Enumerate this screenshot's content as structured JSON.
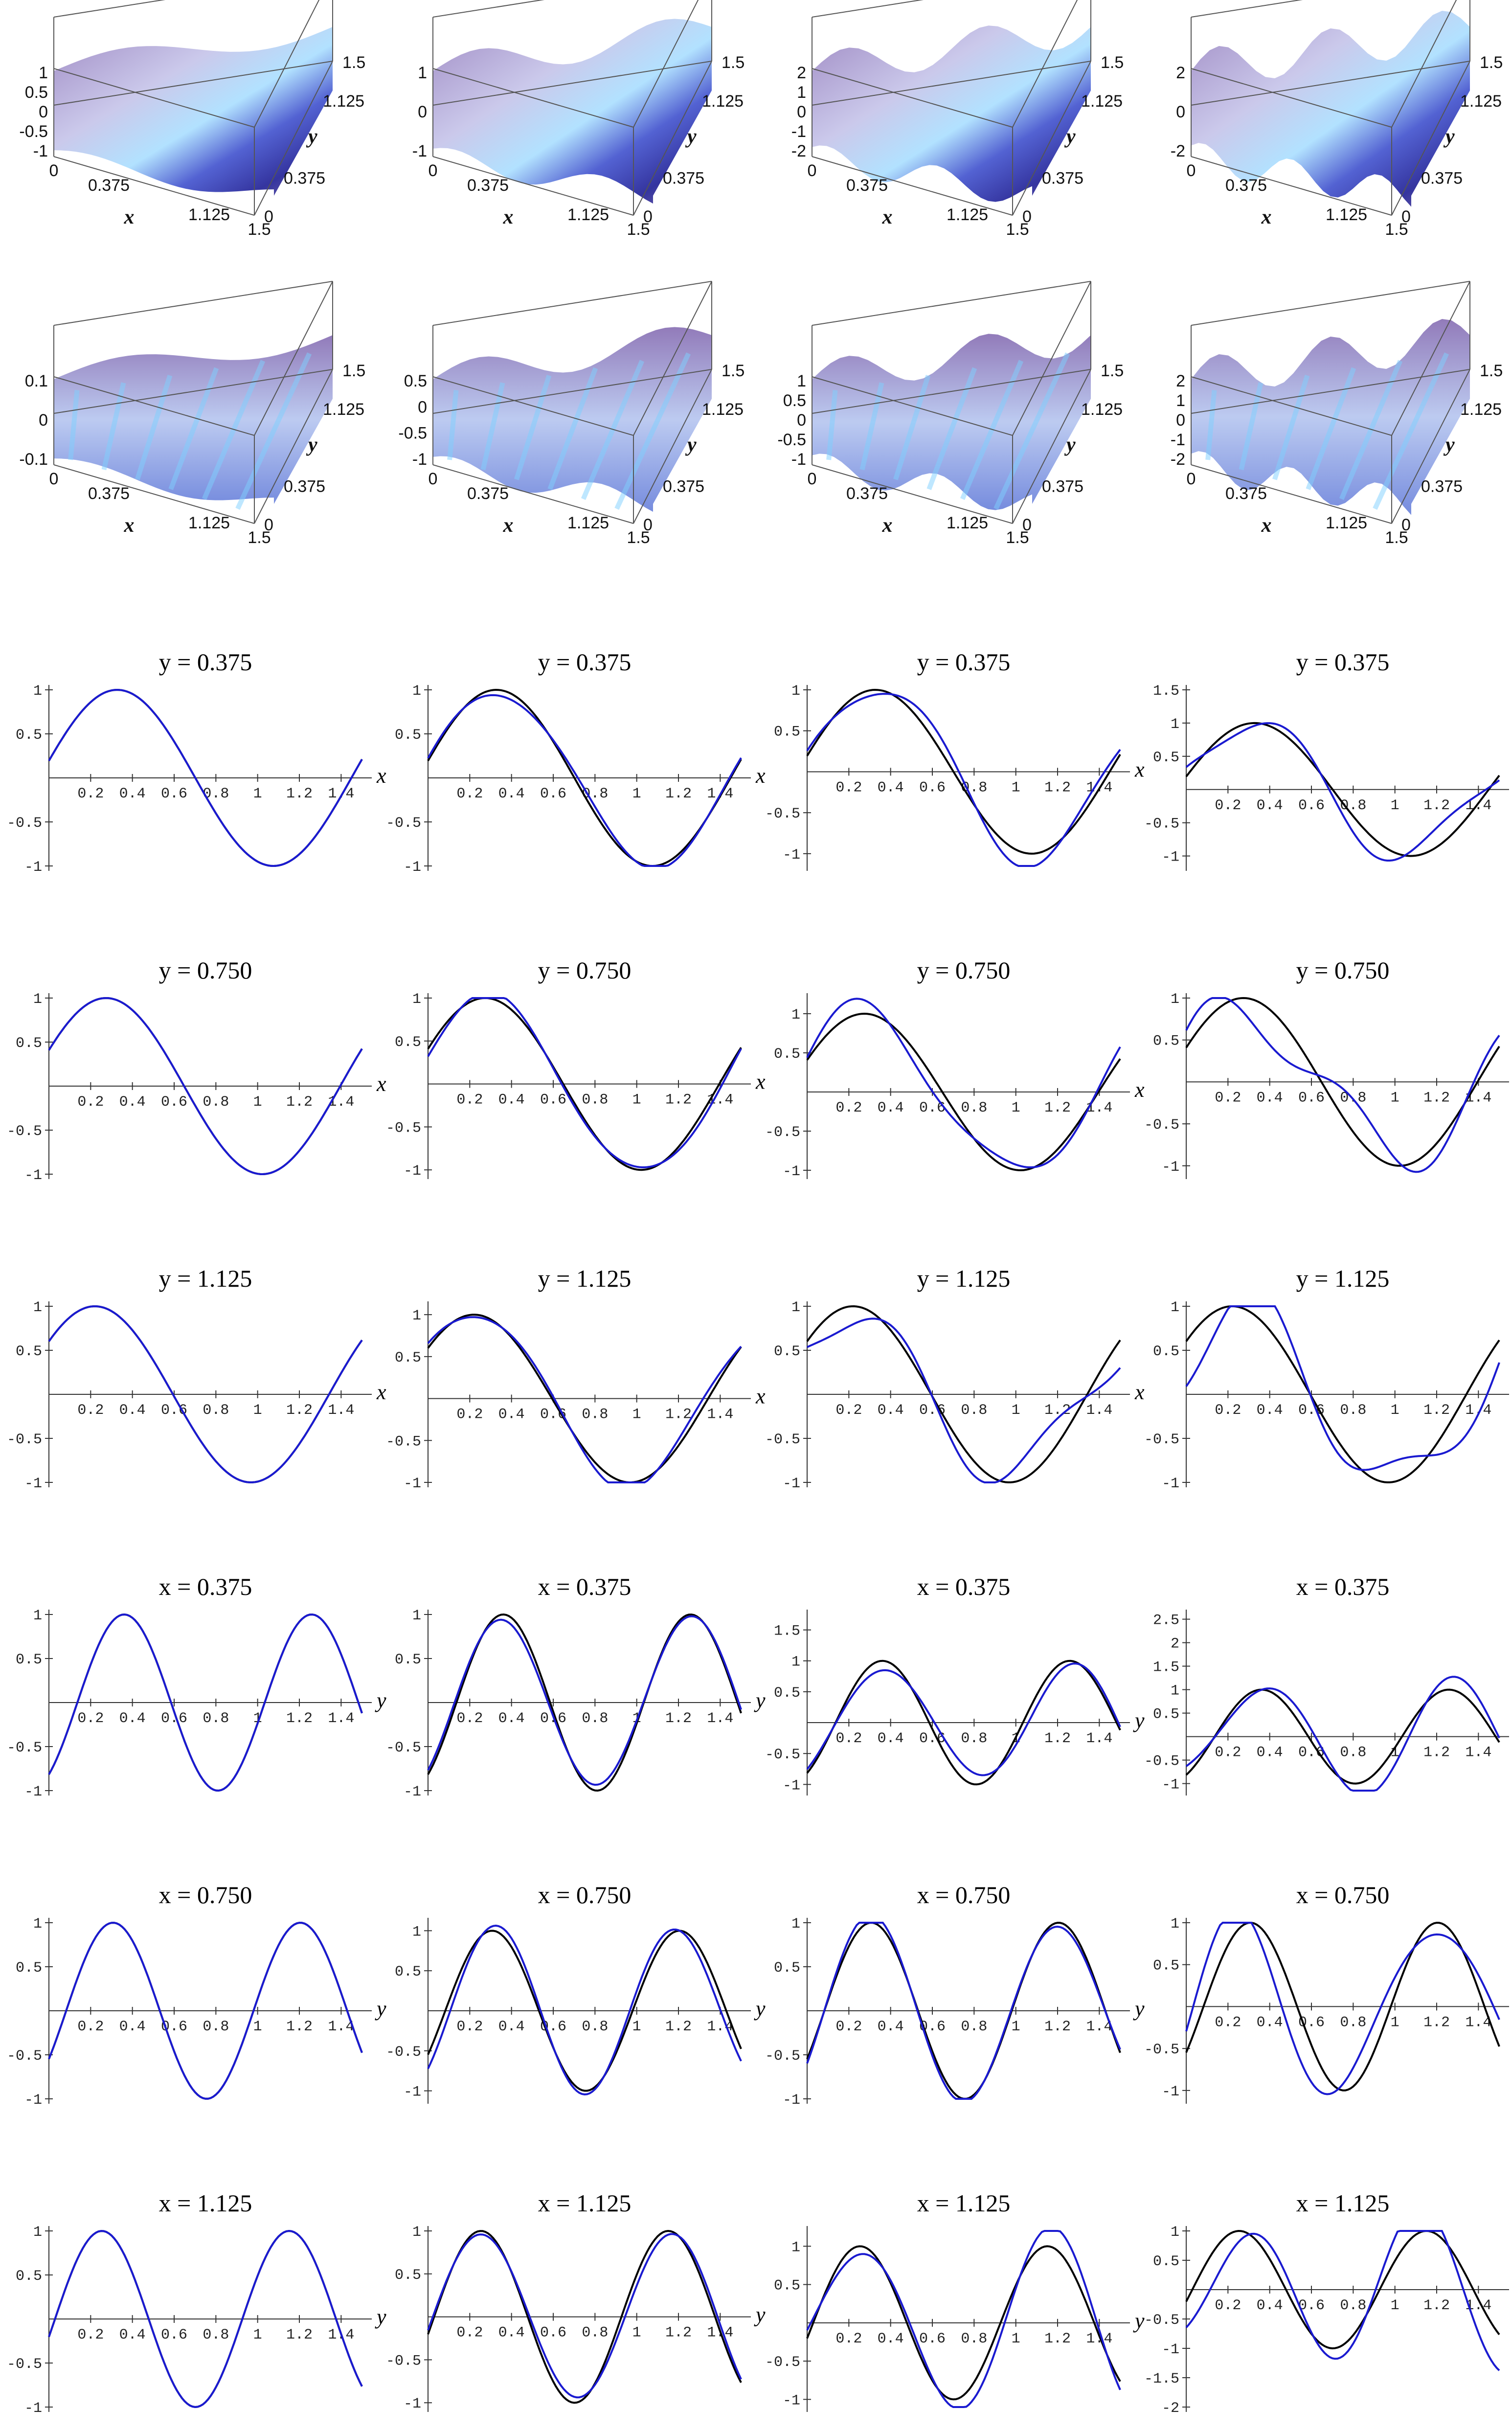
{
  "chart_data": {
    "type": "line",
    "title": "",
    "colors": {
      "exact": "#000000",
      "approx": "#1a1ad0",
      "surface_high": "#8a6fb0",
      "surface_low": "#2a2a9a",
      "surface_mid": "#aee0ff",
      "surface_peak": "#f4f0b0"
    },
    "surface_panels": [
      {
        "zticks": [
          "1",
          "0.5",
          "0",
          "-0.5",
          "-1"
        ],
        "xticks": [
          "0",
          "0.375",
          "1.125",
          "1.5"
        ],
        "yticks": [
          "0",
          "0.375",
          "1.125",
          "1.5"
        ],
        "xlabel": "x",
        "ylabel": "y"
      },
      {
        "zticks": [
          "1",
          "0",
          "-1"
        ],
        "xticks": [
          "0",
          "0.375",
          "1.125",
          "1.5"
        ],
        "yticks": [
          "0",
          "0.375",
          "1.125",
          "1.5"
        ],
        "xlabel": "x",
        "ylabel": "y"
      },
      {
        "zticks": [
          "2",
          "1",
          "0",
          "-1",
          "-2"
        ],
        "xticks": [
          "0",
          "0.375",
          "1.125",
          "1.5"
        ],
        "yticks": [
          "0",
          "0.375",
          "1.125",
          "1.5"
        ],
        "xlabel": "x",
        "ylabel": "y"
      },
      {
        "zticks": [
          "2",
          "0",
          "-2"
        ],
        "xticks": [
          "0",
          "0.375",
          "1.125",
          "1.5"
        ],
        "yticks": [
          "0",
          "0.375",
          "1.125",
          "1.5"
        ],
        "xlabel": "x",
        "ylabel": "y"
      },
      {
        "zticks": [
          "0.1",
          "0",
          "-0.1"
        ],
        "xticks": [
          "0",
          "0.375",
          "1.125",
          "1.5"
        ],
        "yticks": [
          "0",
          "0.375",
          "1.125",
          "1.5"
        ],
        "xlabel": "x",
        "ylabel": "y"
      },
      {
        "zticks": [
          "0.5",
          "0",
          "-0.5",
          "-1"
        ],
        "xticks": [
          "0",
          "0.375",
          "1.125",
          "1.5"
        ],
        "yticks": [
          "0",
          "0.375",
          "1.125",
          "1.5"
        ],
        "xlabel": "x",
        "ylabel": "y"
      },
      {
        "zticks": [
          "1",
          "0.5",
          "0",
          "-0.5",
          "-1"
        ],
        "xticks": [
          "0",
          "0.375",
          "1.125",
          "1.5"
        ],
        "yticks": [
          "0",
          "0.375",
          "1.125",
          "1.5"
        ],
        "xlabel": "x",
        "ylabel": "y"
      },
      {
        "zticks": [
          "2",
          "1",
          "0",
          "-1",
          "-2"
        ],
        "xticks": [
          "0",
          "0.375",
          "1.125",
          "1.5"
        ],
        "yticks": [
          "0",
          "0.375",
          "1.125",
          "1.5"
        ],
        "xlabel": "x",
        "ylabel": "y"
      }
    ],
    "line_panels": [
      {
        "title": "y = 0.375",
        "xlabel": "x",
        "slice": "y",
        "c": 0.375,
        "ylim": [
          -1,
          1
        ],
        "ytick_labels": [
          "1",
          "0.5",
          "-0.5",
          "-1"
        ],
        "xtick_labels": [
          "0.2",
          "0.4",
          "0.6",
          "0.8",
          "1",
          "1.2",
          "1.4"
        ],
        "exact_only": false,
        "approx_err": 0.0
      },
      {
        "title": "y = 0.375",
        "xlabel": "x",
        "slice": "y",
        "c": 0.375,
        "ylim": [
          -1,
          1
        ],
        "ytick_labels": [
          "1",
          "0.5",
          "-0.5",
          "-1"
        ],
        "xtick_labels": [
          "0.2",
          "0.4",
          "0.6",
          "0.8",
          "1",
          "1.2",
          "1.4"
        ],
        "approx_err": 0.05
      },
      {
        "title": "y = 0.375",
        "xlabel": "x",
        "slice": "y",
        "c": 0.375,
        "ylim": [
          -1.15,
          1
        ],
        "ytick_labels": [
          "1",
          "0.5",
          "-0.5",
          "-1"
        ],
        "xtick_labels": [
          "0.2",
          "0.4",
          "0.6",
          "0.8",
          "1",
          "1.2",
          "1.4"
        ],
        "approx_err": 0.12
      },
      {
        "title": "y = 0.375",
        "xlabel": "x",
        "slice": "y",
        "c": 0.375,
        "ylim": [
          -1.15,
          1.5
        ],
        "ytick_labels": [
          "1.5",
          "1",
          "0.5",
          "-0.5",
          "-1"
        ],
        "xtick_labels": [
          "0.2",
          "0.4",
          "0.6",
          "0.8",
          "1",
          "1.2",
          "1.4"
        ],
        "approx_err": 0.2
      },
      {
        "title": "y = 0.750",
        "xlabel": "x",
        "slice": "y",
        "c": 0.75,
        "ylim": [
          -1,
          1
        ],
        "ytick_labels": [
          "1",
          "0.5",
          "-0.5",
          "-1"
        ],
        "xtick_labels": [
          "0.2",
          "0.4",
          "0.6",
          "0.8",
          "1",
          "1.2",
          "1.4"
        ],
        "approx_err": 0.0
      },
      {
        "title": "y = 0.750",
        "xlabel": "x",
        "slice": "y",
        "c": 0.75,
        "ylim": [
          -1.05,
          1
        ],
        "ytick_labels": [
          "1",
          "0.5",
          "-0.5",
          "-1"
        ],
        "xtick_labels": [
          "0.2",
          "0.4",
          "0.6",
          "0.8",
          "1",
          "1.2",
          "1.4"
        ],
        "approx_err": 0.06
      },
      {
        "title": "y = 0.750",
        "xlabel": "x",
        "slice": "y",
        "c": 0.75,
        "ylim": [
          -1.05,
          1.2
        ],
        "ytick_labels": [
          "1",
          "0.5",
          "-0.5",
          "-1"
        ],
        "xtick_labels": [
          "0.2",
          "0.4",
          "0.6",
          "0.8",
          "1",
          "1.2",
          "1.4"
        ],
        "approx_err": 0.14
      },
      {
        "title": "y = 0.750",
        "xlabel": "x",
        "slice": "y",
        "c": 0.75,
        "ylim": [
          -1.1,
          1
        ],
        "ytick_labels": [
          "1",
          "0.5",
          "-0.5",
          "-1"
        ],
        "xtick_labels": [
          "0.2",
          "0.4",
          "0.6",
          "0.8",
          "1",
          "1.2",
          "1.4"
        ],
        "approx_err": 0.28
      },
      {
        "title": "y = 1.125",
        "xlabel": "x",
        "slice": "y",
        "c": 1.125,
        "ylim": [
          -1,
          1
        ],
        "ytick_labels": [
          "1",
          "0.5",
          "-0.5",
          "-1"
        ],
        "xtick_labels": [
          "0.2",
          "0.4",
          "0.6",
          "0.8",
          "1",
          "1.2",
          "1.4"
        ],
        "approx_err": 0.0
      },
      {
        "title": "y = 1.125",
        "xlabel": "x",
        "slice": "y",
        "c": 1.125,
        "ylim": [
          -1,
          1.1
        ],
        "ytick_labels": [
          "1",
          "0.5",
          "-0.5",
          "-1"
        ],
        "xtick_labels": [
          "0.2",
          "0.4",
          "0.6",
          "0.8",
          "1",
          "1.2",
          "1.4"
        ],
        "approx_err": 0.07
      },
      {
        "title": "y = 1.125",
        "xlabel": "x",
        "slice": "y",
        "c": 1.125,
        "ylim": [
          -1,
          1
        ],
        "ytick_labels": [
          "1",
          "0.5",
          "-0.5",
          "-1"
        ],
        "xtick_labels": [
          "0.2",
          "0.4",
          "0.6",
          "0.8",
          "1",
          "1.2",
          "1.4"
        ],
        "approx_err": 0.22
      },
      {
        "title": "y = 1.125",
        "xlabel": "x",
        "slice": "y",
        "c": 1.125,
        "ylim": [
          -1,
          1
        ],
        "ytick_labels": [
          "1",
          "0.5",
          "-0.5",
          "-1"
        ],
        "xtick_labels": [
          "0.2",
          "0.4",
          "0.6",
          "0.8",
          "1",
          "1.2",
          "1.4"
        ],
        "approx_err": 0.32
      },
      {
        "title": "x = 0.375",
        "xlabel": "y",
        "slice": "x",
        "c": 0.375,
        "ylim": [
          -1,
          1
        ],
        "ytick_labels": [
          "1",
          "0.5",
          "-0.5",
          "-1"
        ],
        "xtick_labels": [
          "0.2",
          "0.4",
          "0.6",
          "0.8",
          "1",
          "1.2",
          "1.4"
        ],
        "approx_err": 0.0
      },
      {
        "title": "x = 0.375",
        "xlabel": "y",
        "slice": "x",
        "c": 0.375,
        "ylim": [
          -1,
          1
        ],
        "ytick_labels": [
          "1",
          "0.5",
          "-0.5",
          "-1"
        ],
        "xtick_labels": [
          "0.2",
          "0.4",
          "0.6",
          "0.8",
          "1",
          "1.2",
          "1.4"
        ],
        "approx_err": 0.06
      },
      {
        "title": "x = 0.375",
        "xlabel": "y",
        "slice": "x",
        "c": 0.375,
        "ylim": [
          -1.1,
          1.75
        ],
        "ytick_labels": [
          "1.5",
          "1",
          "0.5",
          "-0.5",
          "-1"
        ],
        "xtick_labels": [
          "0.2",
          "0.4",
          "0.6",
          "0.8",
          "1",
          "1.2",
          "1.4"
        ],
        "approx_err": 0.15
      },
      {
        "title": "x = 0.375",
        "xlabel": "y",
        "slice": "x",
        "c": 0.375,
        "ylim": [
          -1.15,
          2.6
        ],
        "ytick_labels": [
          "2.5",
          "2",
          "1.5",
          "1",
          "0.5",
          "-0.5",
          "-1"
        ],
        "xtick_labels": [
          "0.2",
          "0.4",
          "0.6",
          "0.8",
          "1",
          "1.2",
          "1.4"
        ],
        "approx_err": 0.25
      },
      {
        "title": "x = 0.750",
        "xlabel": "y",
        "slice": "x",
        "c": 0.75,
        "ylim": [
          -1,
          1
        ],
        "ytick_labels": [
          "1",
          "0.5",
          "-0.5",
          "-1"
        ],
        "xtick_labels": [
          "0.2",
          "0.4",
          "0.6",
          "0.8",
          "1",
          "1.2",
          "1.4"
        ],
        "approx_err": 0.0
      },
      {
        "title": "x = 0.750",
        "xlabel": "y",
        "slice": "x",
        "c": 0.75,
        "ylim": [
          -1.1,
          1.1
        ],
        "ytick_labels": [
          "1",
          "0.5",
          "-0.5",
          "-1"
        ],
        "xtick_labels": [
          "0.2",
          "0.4",
          "0.6",
          "0.8",
          "1",
          "1.2",
          "1.4"
        ],
        "approx_err": 0.12
      },
      {
        "title": "x = 0.750",
        "xlabel": "y",
        "slice": "x",
        "c": 0.75,
        "ylim": [
          -1,
          1
        ],
        "ytick_labels": [
          "1",
          "0.5",
          "-0.5",
          "-1"
        ],
        "xtick_labels": [
          "0.2",
          "0.4",
          "0.6",
          "0.8",
          "1",
          "1.2",
          "1.4"
        ],
        "approx_err": 0.06
      },
      {
        "title": "x = 0.750",
        "xlabel": "y",
        "slice": "x",
        "c": 0.75,
        "ylim": [
          -1.1,
          1
        ],
        "ytick_labels": [
          "1",
          "0.5",
          "-0.5",
          "-1"
        ],
        "xtick_labels": [
          "0.2",
          "0.4",
          "0.6",
          "0.8",
          "1",
          "1.2",
          "1.4"
        ],
        "approx_err": 0.35
      },
      {
        "title": "x = 1.125",
        "xlabel": "y",
        "slice": "x",
        "c": 1.125,
        "ylim": [
          -1,
          1
        ],
        "ytick_labels": [
          "1",
          "0.5",
          "-0.5",
          "-1"
        ],
        "xtick_labels": [
          "0.2",
          "0.4",
          "0.6",
          "0.8",
          "1",
          "1.2",
          "1.4"
        ],
        "approx_err": 0.0
      },
      {
        "title": "x = 1.125",
        "xlabel": "y",
        "slice": "x",
        "c": 1.125,
        "ylim": [
          -1.05,
          1
        ],
        "ytick_labels": [
          "1",
          "0.5",
          "-0.5",
          "-1"
        ],
        "xtick_labels": [
          "0.2",
          "0.4",
          "0.6",
          "0.8",
          "1",
          "1.2",
          "1.4"
        ],
        "approx_err": 0.08
      },
      {
        "title": "x = 1.125",
        "xlabel": "y",
        "slice": "x",
        "c": 1.125,
        "ylim": [
          -1.1,
          1.2
        ],
        "ytick_labels": [
          "1",
          "0.5",
          "-0.5",
          "-1"
        ],
        "xtick_labels": [
          "0.2",
          "0.4",
          "0.6",
          "0.8",
          "1",
          "1.2",
          "1.4"
        ],
        "approx_err": 0.18
      },
      {
        "title": "x = 1.125",
        "xlabel": "y",
        "slice": "x",
        "c": 1.125,
        "ylim": [
          -2,
          1
        ],
        "ytick_labels": [
          "1",
          "0.5",
          "-0.5",
          "-1",
          "-1.5",
          "-2"
        ],
        "xtick_labels": [
          "0.2",
          "0.4",
          "0.6",
          "0.8",
          "1",
          "1.2",
          "1.4"
        ],
        "approx_err": 0.4
      }
    ]
  }
}
